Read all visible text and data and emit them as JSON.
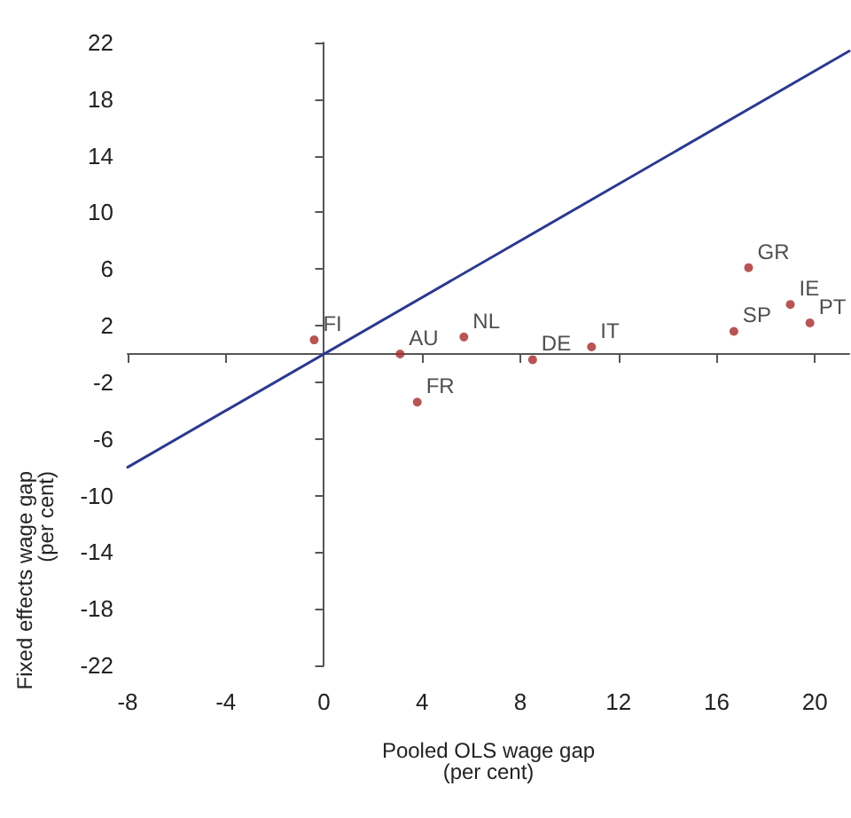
{
  "chart_data": {
    "type": "scatter",
    "xlabel": "Pooled OLS wage gap\n(per cent)",
    "ylabel": "Fixed effects wage gap\n(per cent)",
    "xlim": [
      -8,
      21.4
    ],
    "xticks": [
      -8,
      -4,
      0,
      4,
      8,
      12,
      16,
      20
    ],
    "ylim": [
      -22,
      22
    ],
    "yticks": [
      -22,
      -18,
      -14,
      -10,
      -6,
      -2,
      2,
      6,
      10,
      14,
      18,
      22
    ],
    "marker": "circle",
    "series": [
      {
        "type": "line",
        "x": [
          -8,
          21.4
        ],
        "values": [
          -8,
          21.4
        ],
        "color": "#2b3990",
        "marker": "none",
        "line_style": "solid"
      },
      {
        "x": [
          -0.4,
          3.1,
          3.8,
          5.7,
          8.5,
          10.9,
          16.7,
          17.3,
          19.0,
          19.8
        ],
        "values": [
          1.0,
          0,
          -3.4,
          1.2,
          -0.4,
          0.5,
          1.6,
          6.1,
          3.5,
          2.2
        ],
        "color": "#a52a2a"
      }
    ],
    "annotations": [
      {
        "text": "FI",
        "x": -0.4,
        "y": 1.0
      },
      {
        "text": "AU",
        "x": 3.1,
        "y": 0
      },
      {
        "text": "FR",
        "x": 3.8,
        "y": -3.4
      },
      {
        "text": "NL",
        "x": 5.7,
        "y": 1.2
      },
      {
        "text": "DE",
        "x": 8.5,
        "y": -0.4
      },
      {
        "text": "IT",
        "x": 10.9,
        "y": 0.5
      },
      {
        "text": "SP",
        "x": 16.7,
        "y": 1.6
      },
      {
        "text": "GR",
        "x": 17.3,
        "y": 6.1
      },
      {
        "text": "IE",
        "x": 19.0,
        "y": 3.5
      },
      {
        "text": "PT",
        "x": 19.8,
        "y": 2.2
      }
    ]
  }
}
